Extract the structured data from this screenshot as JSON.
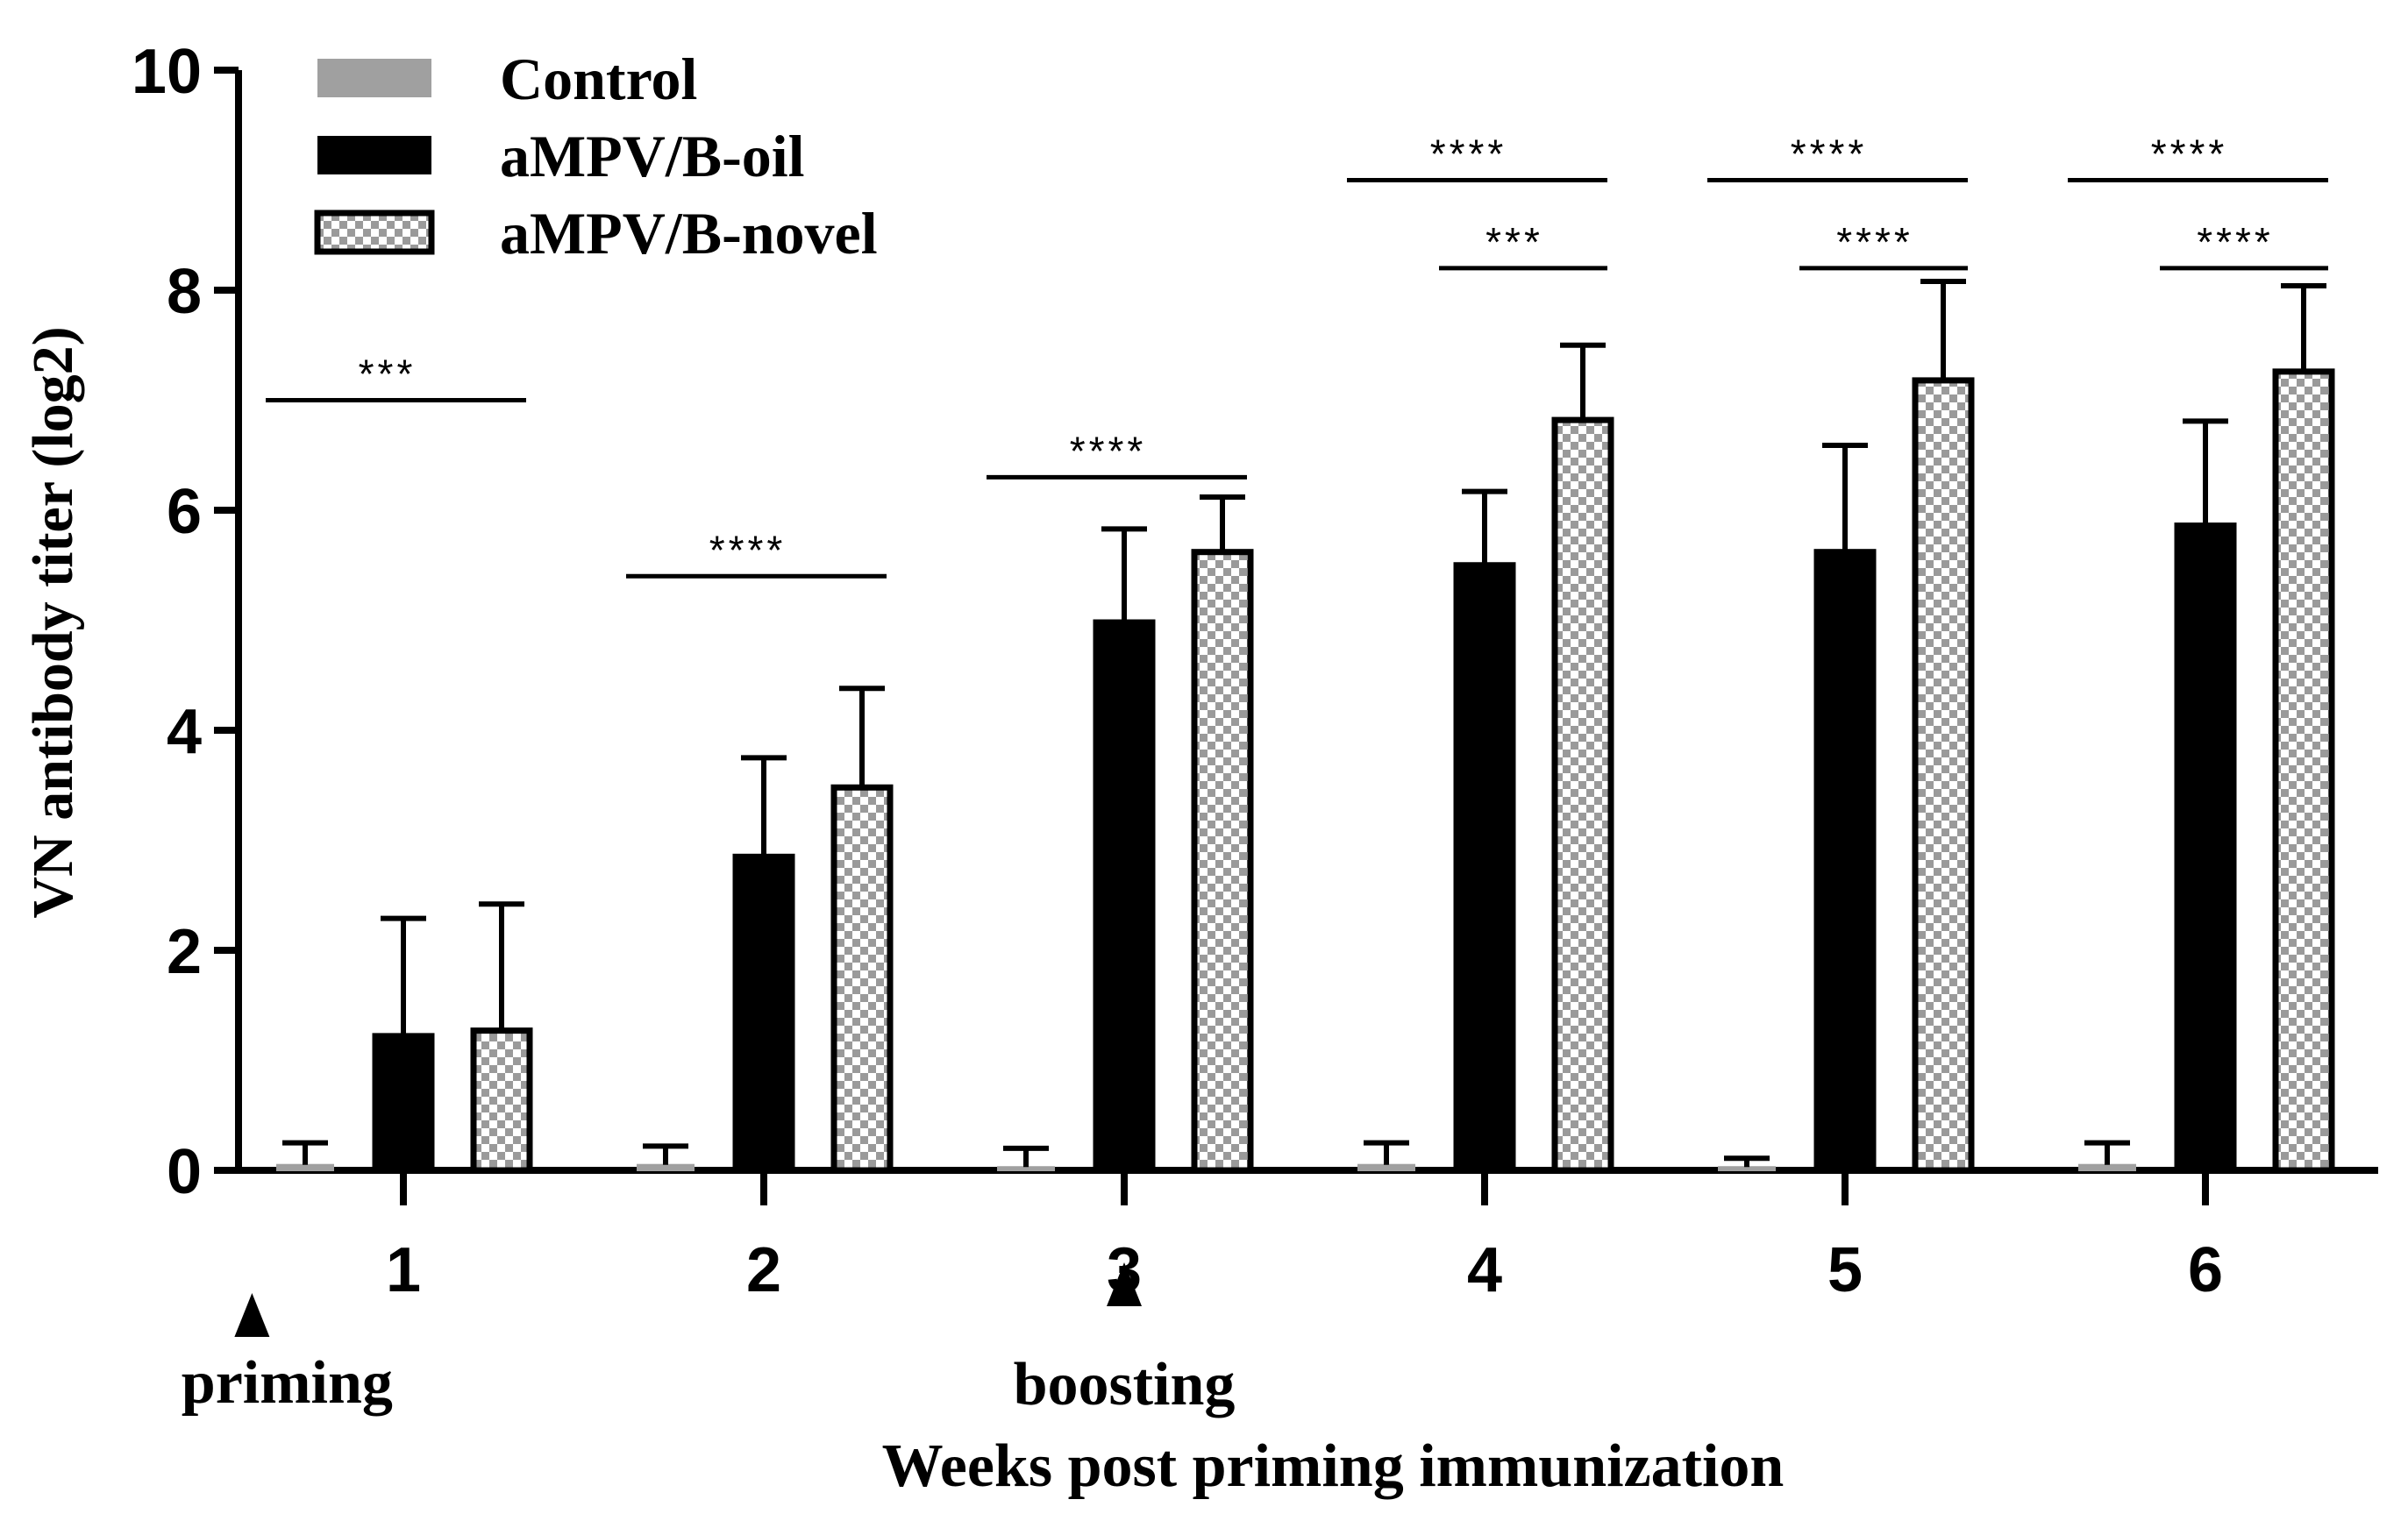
{
  "chart_data": {
    "type": "bar",
    "ylabel": "VN antibody titer (log2)",
    "xlabel": "Weeks post priming immunization",
    "ylim": [
      0,
      10
    ],
    "yticks": [
      "0",
      "2",
      "4",
      "6",
      "8",
      "10"
    ],
    "categories": [
      "1",
      "2",
      "3",
      "4",
      "5",
      "6"
    ],
    "series": [
      {
        "name": "Control",
        "color": "#a0a0a0",
        "pattern": "solid-gray",
        "values": [
          0.05,
          0.05,
          0.03,
          0.05,
          0.03,
          0.05
        ],
        "errors": [
          0.2,
          0.17,
          0.17,
          0.2,
          0.08,
          0.2
        ]
      },
      {
        "name": "aMPV/B-oil",
        "color": "#000000",
        "pattern": "solid-black",
        "values": [
          1.22,
          2.85,
          4.98,
          5.5,
          5.62,
          5.86
        ],
        "errors": [
          1.07,
          0.9,
          0.85,
          0.67,
          0.97,
          0.95
        ]
      },
      {
        "name": "aMPV/B-novel",
        "color": "#808080",
        "pattern": "checker",
        "values": [
          1.27,
          3.48,
          5.62,
          6.82,
          7.18,
          7.26
        ],
        "errors": [
          1.15,
          0.9,
          0.5,
          0.68,
          0.9,
          0.78
        ]
      }
    ],
    "significance": [
      {
        "group": 0,
        "from": 0,
        "to": 2,
        "level": 0.7,
        "label": "***"
      },
      {
        "group": 1,
        "from": 0,
        "to": 2,
        "level": 0.54,
        "label": "****"
      },
      {
        "group": 2,
        "from": 0,
        "to": 2,
        "level": 0.63,
        "label": "****"
      },
      {
        "group": 3,
        "from": 0,
        "to": 2,
        "level": 0.9,
        "label": "****"
      },
      {
        "group": 3,
        "from": 1,
        "to": 2,
        "level": 0.82,
        "label": "***"
      },
      {
        "group": 4,
        "from": 0,
        "to": 2,
        "level": 0.9,
        "label": "****"
      },
      {
        "group": 4,
        "from": 1,
        "to": 2,
        "level": 0.82,
        "label": "****"
      },
      {
        "group": 5,
        "from": 0,
        "to": 2,
        "level": 0.9,
        "label": "****"
      },
      {
        "group": 5,
        "from": 1,
        "to": 2,
        "level": 0.82,
        "label": "****"
      }
    ],
    "annotations": [
      {
        "label": "priming",
        "at_position": 0.58
      },
      {
        "label": "boosting",
        "at_position": 3.0
      }
    ]
  }
}
